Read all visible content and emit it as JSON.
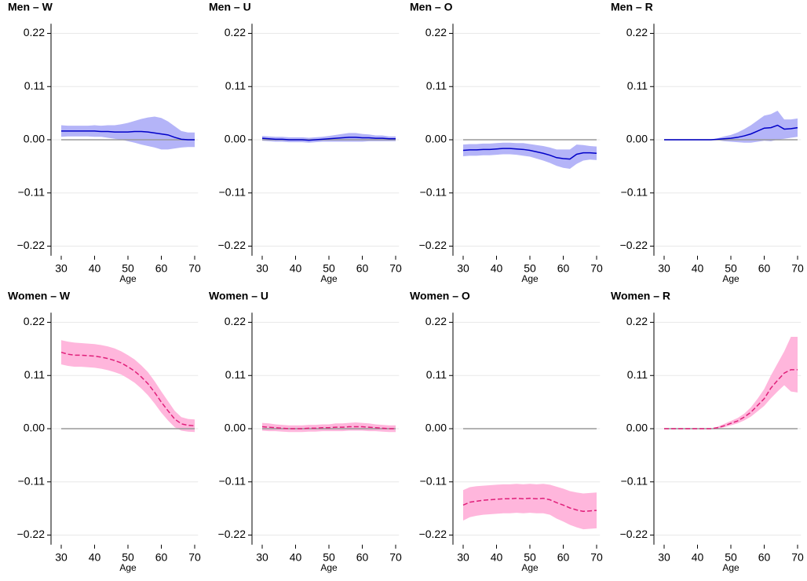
{
  "chart_data": [
    {
      "type": "line",
      "title": "Men – W",
      "xlabel": "Age",
      "xlim": [
        28,
        71
      ],
      "ylim": [
        -0.24,
        0.24
      ],
      "xticks": [
        30,
        40,
        50,
        60,
        70
      ],
      "yticks": [
        {
          "value": -0.22,
          "label": "−0.22"
        },
        {
          "value": -0.11,
          "label": "−0.11"
        },
        {
          "value": 0,
          "label": "0.00"
        },
        0.11,
        0.22
      ],
      "grid": true,
      "reference_line": 0,
      "dashed": false,
      "x": [
        30,
        32,
        34,
        36,
        38,
        40,
        42,
        44,
        46,
        48,
        50,
        52,
        54,
        56,
        58,
        60,
        62,
        64,
        66,
        68,
        70
      ],
      "series": [
        {
          "color": "#0000c8",
          "band_color": "#b4b4f8",
          "values": [
            0.018,
            0.018,
            0.018,
            0.018,
            0.018,
            0.018,
            0.017,
            0.017,
            0.016,
            0.016,
            0.016,
            0.017,
            0.017,
            0.016,
            0.014,
            0.012,
            0.01,
            0.005,
            0.001,
            0.0,
            0.0
          ],
          "lower": [
            0.006,
            0.007,
            0.007,
            0.007,
            0.007,
            0.006,
            0.006,
            0.004,
            0.002,
            0.0,
            -0.003,
            -0.006,
            -0.01,
            -0.013,
            -0.016,
            -0.02,
            -0.02,
            -0.018,
            -0.016,
            -0.015,
            -0.015
          ],
          "upper": [
            0.03,
            0.029,
            0.029,
            0.029,
            0.029,
            0.03,
            0.029,
            0.03,
            0.03,
            0.032,
            0.035,
            0.039,
            0.043,
            0.046,
            0.048,
            0.045,
            0.038,
            0.028,
            0.018,
            0.015,
            0.015
          ]
        }
      ]
    },
    {
      "type": "line",
      "title": "Men – U",
      "xlabel": "Age",
      "xlim": [
        28,
        71
      ],
      "ylim": [
        -0.24,
        0.24
      ],
      "xticks": [
        30,
        40,
        50,
        60,
        70
      ],
      "yticks": [
        {
          "value": -0.22,
          "label": "−0.22"
        },
        {
          "value": -0.11,
          "label": "−0.11"
        },
        {
          "value": 0,
          "label": "0.00"
        },
        0.11,
        0.22
      ],
      "grid": true,
      "reference_line": 0,
      "dashed": false,
      "x": [
        30,
        32,
        34,
        36,
        38,
        40,
        42,
        44,
        46,
        48,
        50,
        52,
        54,
        56,
        58,
        60,
        62,
        64,
        66,
        68,
        70
      ],
      "series": [
        {
          "color": "#0000c8",
          "band_color": "#b4b4f8",
          "values": [
            0.003,
            0.002,
            0.001,
            0.001,
            0.0,
            0.0,
            0.0,
            -0.001,
            0.0,
            0.001,
            0.002,
            0.003,
            0.004,
            0.005,
            0.005,
            0.004,
            0.004,
            0.003,
            0.003,
            0.002,
            0.002
          ],
          "lower": [
            -0.002,
            -0.003,
            -0.004,
            -0.004,
            -0.005,
            -0.005,
            -0.005,
            -0.006,
            -0.005,
            -0.004,
            -0.004,
            -0.004,
            -0.004,
            -0.004,
            -0.004,
            -0.004,
            -0.003,
            -0.003,
            -0.003,
            -0.003,
            -0.003
          ],
          "upper": [
            0.008,
            0.007,
            0.006,
            0.006,
            0.005,
            0.005,
            0.005,
            0.004,
            0.005,
            0.006,
            0.008,
            0.01,
            0.012,
            0.014,
            0.014,
            0.012,
            0.011,
            0.009,
            0.009,
            0.007,
            0.007
          ]
        }
      ]
    },
    {
      "type": "line",
      "title": "Men – O",
      "xlabel": "Age",
      "xlim": [
        28,
        71
      ],
      "ylim": [
        -0.24,
        0.24
      ],
      "xticks": [
        30,
        40,
        50,
        60,
        70
      ],
      "yticks": [
        {
          "value": -0.22,
          "label": "−0.22"
        },
        {
          "value": -0.11,
          "label": "−0.11"
        },
        {
          "value": 0,
          "label": "0.00"
        },
        0.11,
        0.22
      ],
      "grid": true,
      "reference_line": 0,
      "dashed": false,
      "x": [
        30,
        32,
        34,
        36,
        38,
        40,
        42,
        44,
        46,
        48,
        50,
        52,
        54,
        56,
        58,
        60,
        62,
        64,
        66,
        68,
        70
      ],
      "series": [
        {
          "color": "#0000c8",
          "band_color": "#b4b4f8",
          "values": [
            -0.022,
            -0.021,
            -0.021,
            -0.02,
            -0.02,
            -0.019,
            -0.018,
            -0.018,
            -0.019,
            -0.02,
            -0.022,
            -0.025,
            -0.028,
            -0.032,
            -0.037,
            -0.039,
            -0.04,
            -0.03,
            -0.027,
            -0.027,
            -0.028
          ],
          "lower": [
            -0.034,
            -0.033,
            -0.033,
            -0.032,
            -0.032,
            -0.031,
            -0.03,
            -0.03,
            -0.031,
            -0.033,
            -0.035,
            -0.039,
            -0.043,
            -0.048,
            -0.054,
            -0.058,
            -0.06,
            -0.05,
            -0.043,
            -0.041,
            -0.042
          ],
          "upper": [
            -0.01,
            -0.009,
            -0.009,
            -0.008,
            -0.008,
            -0.007,
            -0.006,
            -0.006,
            -0.007,
            -0.007,
            -0.009,
            -0.011,
            -0.013,
            -0.016,
            -0.02,
            -0.02,
            -0.02,
            -0.01,
            -0.011,
            -0.013,
            -0.014
          ]
        }
      ]
    },
    {
      "type": "line",
      "title": "Men – R",
      "xlabel": "Age",
      "xlim": [
        28,
        71
      ],
      "ylim": [
        -0.24,
        0.24
      ],
      "xticks": [
        30,
        40,
        50,
        60,
        70
      ],
      "yticks": [
        {
          "value": -0.22,
          "label": "−0.22"
        },
        {
          "value": -0.11,
          "label": "−0.11"
        },
        {
          "value": 0,
          "label": "0.00"
        },
        0.11,
        0.22
      ],
      "grid": true,
      "reference_line": 0,
      "dashed": false,
      "x": [
        30,
        32,
        34,
        36,
        38,
        40,
        42,
        44,
        46,
        48,
        50,
        52,
        54,
        56,
        58,
        60,
        62,
        64,
        66,
        68,
        70
      ],
      "series": [
        {
          "color": "#0000c8",
          "band_color": "#b4b4f8",
          "values": [
            0,
            0,
            0,
            0,
            0,
            0,
            0,
            0,
            0.001,
            0.002,
            0.003,
            0.005,
            0.008,
            0.012,
            0.018,
            0.024,
            0.025,
            0.03,
            0.022,
            0.023,
            0.025
          ],
          "lower": [
            0,
            0,
            0,
            0,
            0,
            0,
            0,
            0,
            -0.001,
            -0.003,
            -0.004,
            -0.005,
            -0.006,
            -0.006,
            -0.004,
            -0.002,
            -0.003,
            0.0,
            0.002,
            0.004,
            0.006
          ],
          "upper": [
            0,
            0,
            0,
            0,
            0,
            0,
            0,
            0,
            0.003,
            0.007,
            0.01,
            0.015,
            0.022,
            0.03,
            0.04,
            0.05,
            0.053,
            0.06,
            0.042,
            0.042,
            0.044
          ]
        }
      ]
    },
    {
      "type": "line",
      "title": "Women – W",
      "xlabel": "Age",
      "xlim": [
        28,
        71
      ],
      "ylim": [
        -0.24,
        0.24
      ],
      "xticks": [
        30,
        40,
        50,
        60,
        70
      ],
      "yticks": [
        {
          "value": -0.22,
          "label": "−0.22"
        },
        {
          "value": -0.11,
          "label": "−0.11"
        },
        {
          "value": 0,
          "label": "0.00"
        },
        0.11,
        0.22
      ],
      "grid": true,
      "reference_line": 0,
      "dashed": true,
      "x": [
        30,
        32,
        34,
        36,
        38,
        40,
        42,
        44,
        46,
        48,
        50,
        52,
        54,
        56,
        58,
        60,
        62,
        64,
        66,
        68,
        70
      ],
      "series": [
        {
          "color": "#e0207a",
          "band_color": "#ffb6dc",
          "values": [
            0.158,
            0.154,
            0.152,
            0.152,
            0.151,
            0.15,
            0.148,
            0.145,
            0.141,
            0.136,
            0.128,
            0.119,
            0.107,
            0.093,
            0.075,
            0.055,
            0.037,
            0.02,
            0.01,
            0.007,
            0.006
          ],
          "lower": [
            0.133,
            0.13,
            0.128,
            0.128,
            0.127,
            0.126,
            0.124,
            0.121,
            0.117,
            0.112,
            0.104,
            0.095,
            0.083,
            0.069,
            0.052,
            0.033,
            0.017,
            0.003,
            -0.004,
            -0.006,
            -0.007
          ],
          "upper": [
            0.183,
            0.18,
            0.178,
            0.177,
            0.176,
            0.175,
            0.173,
            0.17,
            0.166,
            0.16,
            0.152,
            0.143,
            0.131,
            0.117,
            0.098,
            0.077,
            0.057,
            0.037,
            0.024,
            0.02,
            0.019
          ]
        }
      ]
    },
    {
      "type": "line",
      "title": "Women – U",
      "xlabel": "Age",
      "xlim": [
        28,
        71
      ],
      "ylim": [
        -0.24,
        0.24
      ],
      "xticks": [
        30,
        40,
        50,
        60,
        70
      ],
      "yticks": [
        {
          "value": -0.22,
          "label": "−0.22"
        },
        {
          "value": -0.11,
          "label": "−0.11"
        },
        {
          "value": 0,
          "label": "0.00"
        },
        0.11,
        0.22
      ],
      "grid": true,
      "reference_line": 0,
      "dashed": true,
      "x": [
        30,
        32,
        34,
        36,
        38,
        40,
        42,
        44,
        46,
        48,
        50,
        52,
        54,
        56,
        58,
        60,
        62,
        64,
        66,
        68,
        70
      ],
      "series": [
        {
          "color": "#e0207a",
          "band_color": "#ffb6dc",
          "values": [
            0.004,
            0.003,
            0.002,
            0.001,
            0.0,
            0.0,
            0.0,
            0.001,
            0.001,
            0.002,
            0.002,
            0.003,
            0.003,
            0.004,
            0.004,
            0.004,
            0.003,
            0.002,
            0.001,
            0.0,
            0.0
          ],
          "lower": [
            -0.004,
            -0.005,
            -0.005,
            -0.006,
            -0.007,
            -0.007,
            -0.007,
            -0.006,
            -0.006,
            -0.005,
            -0.005,
            -0.005,
            -0.005,
            -0.004,
            -0.004,
            -0.004,
            -0.005,
            -0.005,
            -0.006,
            -0.007,
            -0.007
          ],
          "upper": [
            0.012,
            0.011,
            0.009,
            0.008,
            0.007,
            0.007,
            0.007,
            0.008,
            0.008,
            0.009,
            0.009,
            0.011,
            0.011,
            0.012,
            0.013,
            0.012,
            0.011,
            0.009,
            0.008,
            0.007,
            0.007
          ]
        }
      ]
    },
    {
      "type": "line",
      "title": "Women – O",
      "xlabel": "Age",
      "xlim": [
        28,
        71
      ],
      "ylim": [
        -0.24,
        0.24
      ],
      "xticks": [
        30,
        40,
        50,
        60,
        70
      ],
      "yticks": [
        {
          "value": -0.22,
          "label": "−0.22"
        },
        {
          "value": -0.11,
          "label": "−0.11"
        },
        {
          "value": 0,
          "label": "0.00"
        },
        0.11,
        0.22
      ],
      "grid": true,
      "reference_line": 0,
      "dashed": true,
      "x": [
        30,
        32,
        34,
        36,
        38,
        40,
        42,
        44,
        46,
        48,
        50,
        52,
        54,
        56,
        58,
        60,
        62,
        64,
        66,
        68,
        70
      ],
      "series": [
        {
          "color": "#e0207a",
          "band_color": "#ffb6dc",
          "values": [
            -0.158,
            -0.152,
            -0.15,
            -0.148,
            -0.147,
            -0.146,
            -0.145,
            -0.145,
            -0.144,
            -0.145,
            -0.144,
            -0.145,
            -0.144,
            -0.147,
            -0.153,
            -0.158,
            -0.164,
            -0.168,
            -0.171,
            -0.17,
            -0.169
          ],
          "lower": [
            -0.19,
            -0.183,
            -0.18,
            -0.178,
            -0.177,
            -0.176,
            -0.175,
            -0.175,
            -0.174,
            -0.175,
            -0.174,
            -0.175,
            -0.175,
            -0.178,
            -0.186,
            -0.192,
            -0.199,
            -0.204,
            -0.208,
            -0.207,
            -0.206
          ],
          "upper": [
            -0.127,
            -0.121,
            -0.119,
            -0.118,
            -0.117,
            -0.116,
            -0.115,
            -0.115,
            -0.114,
            -0.115,
            -0.114,
            -0.115,
            -0.114,
            -0.116,
            -0.12,
            -0.124,
            -0.129,
            -0.132,
            -0.134,
            -0.133,
            -0.132
          ]
        }
      ]
    },
    {
      "type": "line",
      "title": "Women – R",
      "xlabel": "Age",
      "xlim": [
        28,
        71
      ],
      "ylim": [
        -0.24,
        0.24
      ],
      "xticks": [
        30,
        40,
        50,
        60,
        70
      ],
      "yticks": [
        {
          "value": -0.22,
          "label": "−0.22"
        },
        {
          "value": -0.11,
          "label": "−0.11"
        },
        {
          "value": 0,
          "label": "0.00"
        },
        0.11,
        0.22
      ],
      "grid": true,
      "reference_line": 0,
      "dashed": true,
      "x": [
        30,
        32,
        34,
        36,
        38,
        40,
        42,
        44,
        46,
        48,
        50,
        52,
        54,
        56,
        58,
        60,
        62,
        64,
        66,
        68,
        70
      ],
      "series": [
        {
          "color": "#e0207a",
          "band_color": "#ffb6dc",
          "values": [
            0,
            0,
            0,
            0,
            0,
            0,
            0,
            0,
            0.002,
            0.006,
            0.011,
            0.016,
            0.024,
            0.034,
            0.048,
            0.062,
            0.084,
            0.1,
            0.115,
            0.122,
            0.122
          ],
          "lower": [
            0,
            0,
            0,
            0,
            0,
            0,
            0,
            0,
            0.0,
            0.003,
            0.007,
            0.011,
            0.017,
            0.025,
            0.036,
            0.047,
            0.063,
            0.077,
            0.09,
            0.077,
            0.075
          ],
          "upper": [
            0,
            0,
            0,
            0,
            0,
            0,
            0,
            0,
            0.004,
            0.01,
            0.016,
            0.022,
            0.031,
            0.044,
            0.062,
            0.082,
            0.11,
            0.135,
            0.16,
            0.19,
            0.19
          ]
        }
      ]
    }
  ]
}
